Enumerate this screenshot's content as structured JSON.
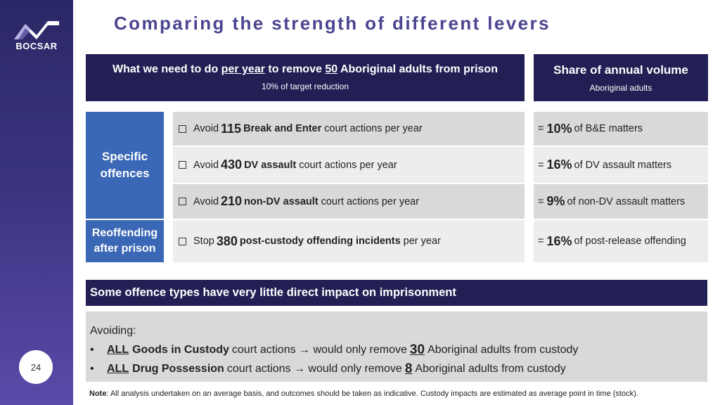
{
  "brand": {
    "name": "BOCSAR",
    "accent": "#221f54",
    "category_color": "#3a67b6"
  },
  "page_number": "24",
  "title": "Comparing the strength of different levers",
  "header_left": {
    "pre": "What we need to do",
    "per_year": "per year",
    "mid": "to remove",
    "count": "50",
    "post": "Aboriginal adults from prison",
    "sub": "10% of target reduction"
  },
  "header_right": {
    "title": "Share of annual volume",
    "sub": "Aboriginal adults"
  },
  "categories": {
    "specific": "Specific offences",
    "reoffending": "Reoffending after prison"
  },
  "rows": [
    {
      "verb": "Avoid",
      "num": "115",
      "type": "Break and Enter",
      "rest": "court actions per year",
      "share_pct": "10%",
      "share_rest": "of B&E matters"
    },
    {
      "verb": "Avoid",
      "num": "430",
      "type": "DV assault",
      "rest": "court actions per year",
      "share_pct": "16%",
      "share_rest": "of DV assault matters"
    },
    {
      "verb": "Avoid",
      "num": "210",
      "type": "non-DV assault",
      "rest": "court actions per year",
      "share_pct": "9%",
      "share_rest": "of non-DV assault matters"
    },
    {
      "verb": "Stop",
      "num": "380",
      "type": "post-custody offending incidents",
      "rest": "per year",
      "share_pct": "16%",
      "share_rest": "of post-release offending"
    }
  ],
  "banner": "Some offence types have very little direct impact on imprisonment",
  "avoid": {
    "intro": "Avoiding:",
    "items": [
      {
        "all": "ALL",
        "type": "Goods in Custody",
        "mid": "court actions → would only remove",
        "num": "30",
        "post": "Aboriginal adults from custody"
      },
      {
        "all": "ALL",
        "type": "Drug Possession",
        "mid": "court actions → would only remove",
        "num": "8",
        "post": "Aboriginal adults from custody"
      }
    ]
  },
  "note": {
    "label": "Note",
    "text": ": All analysis undertaken on an average basis, and outcomes should be taken as indicative. Custody impacts are estimated as average point in time (stock)."
  }
}
